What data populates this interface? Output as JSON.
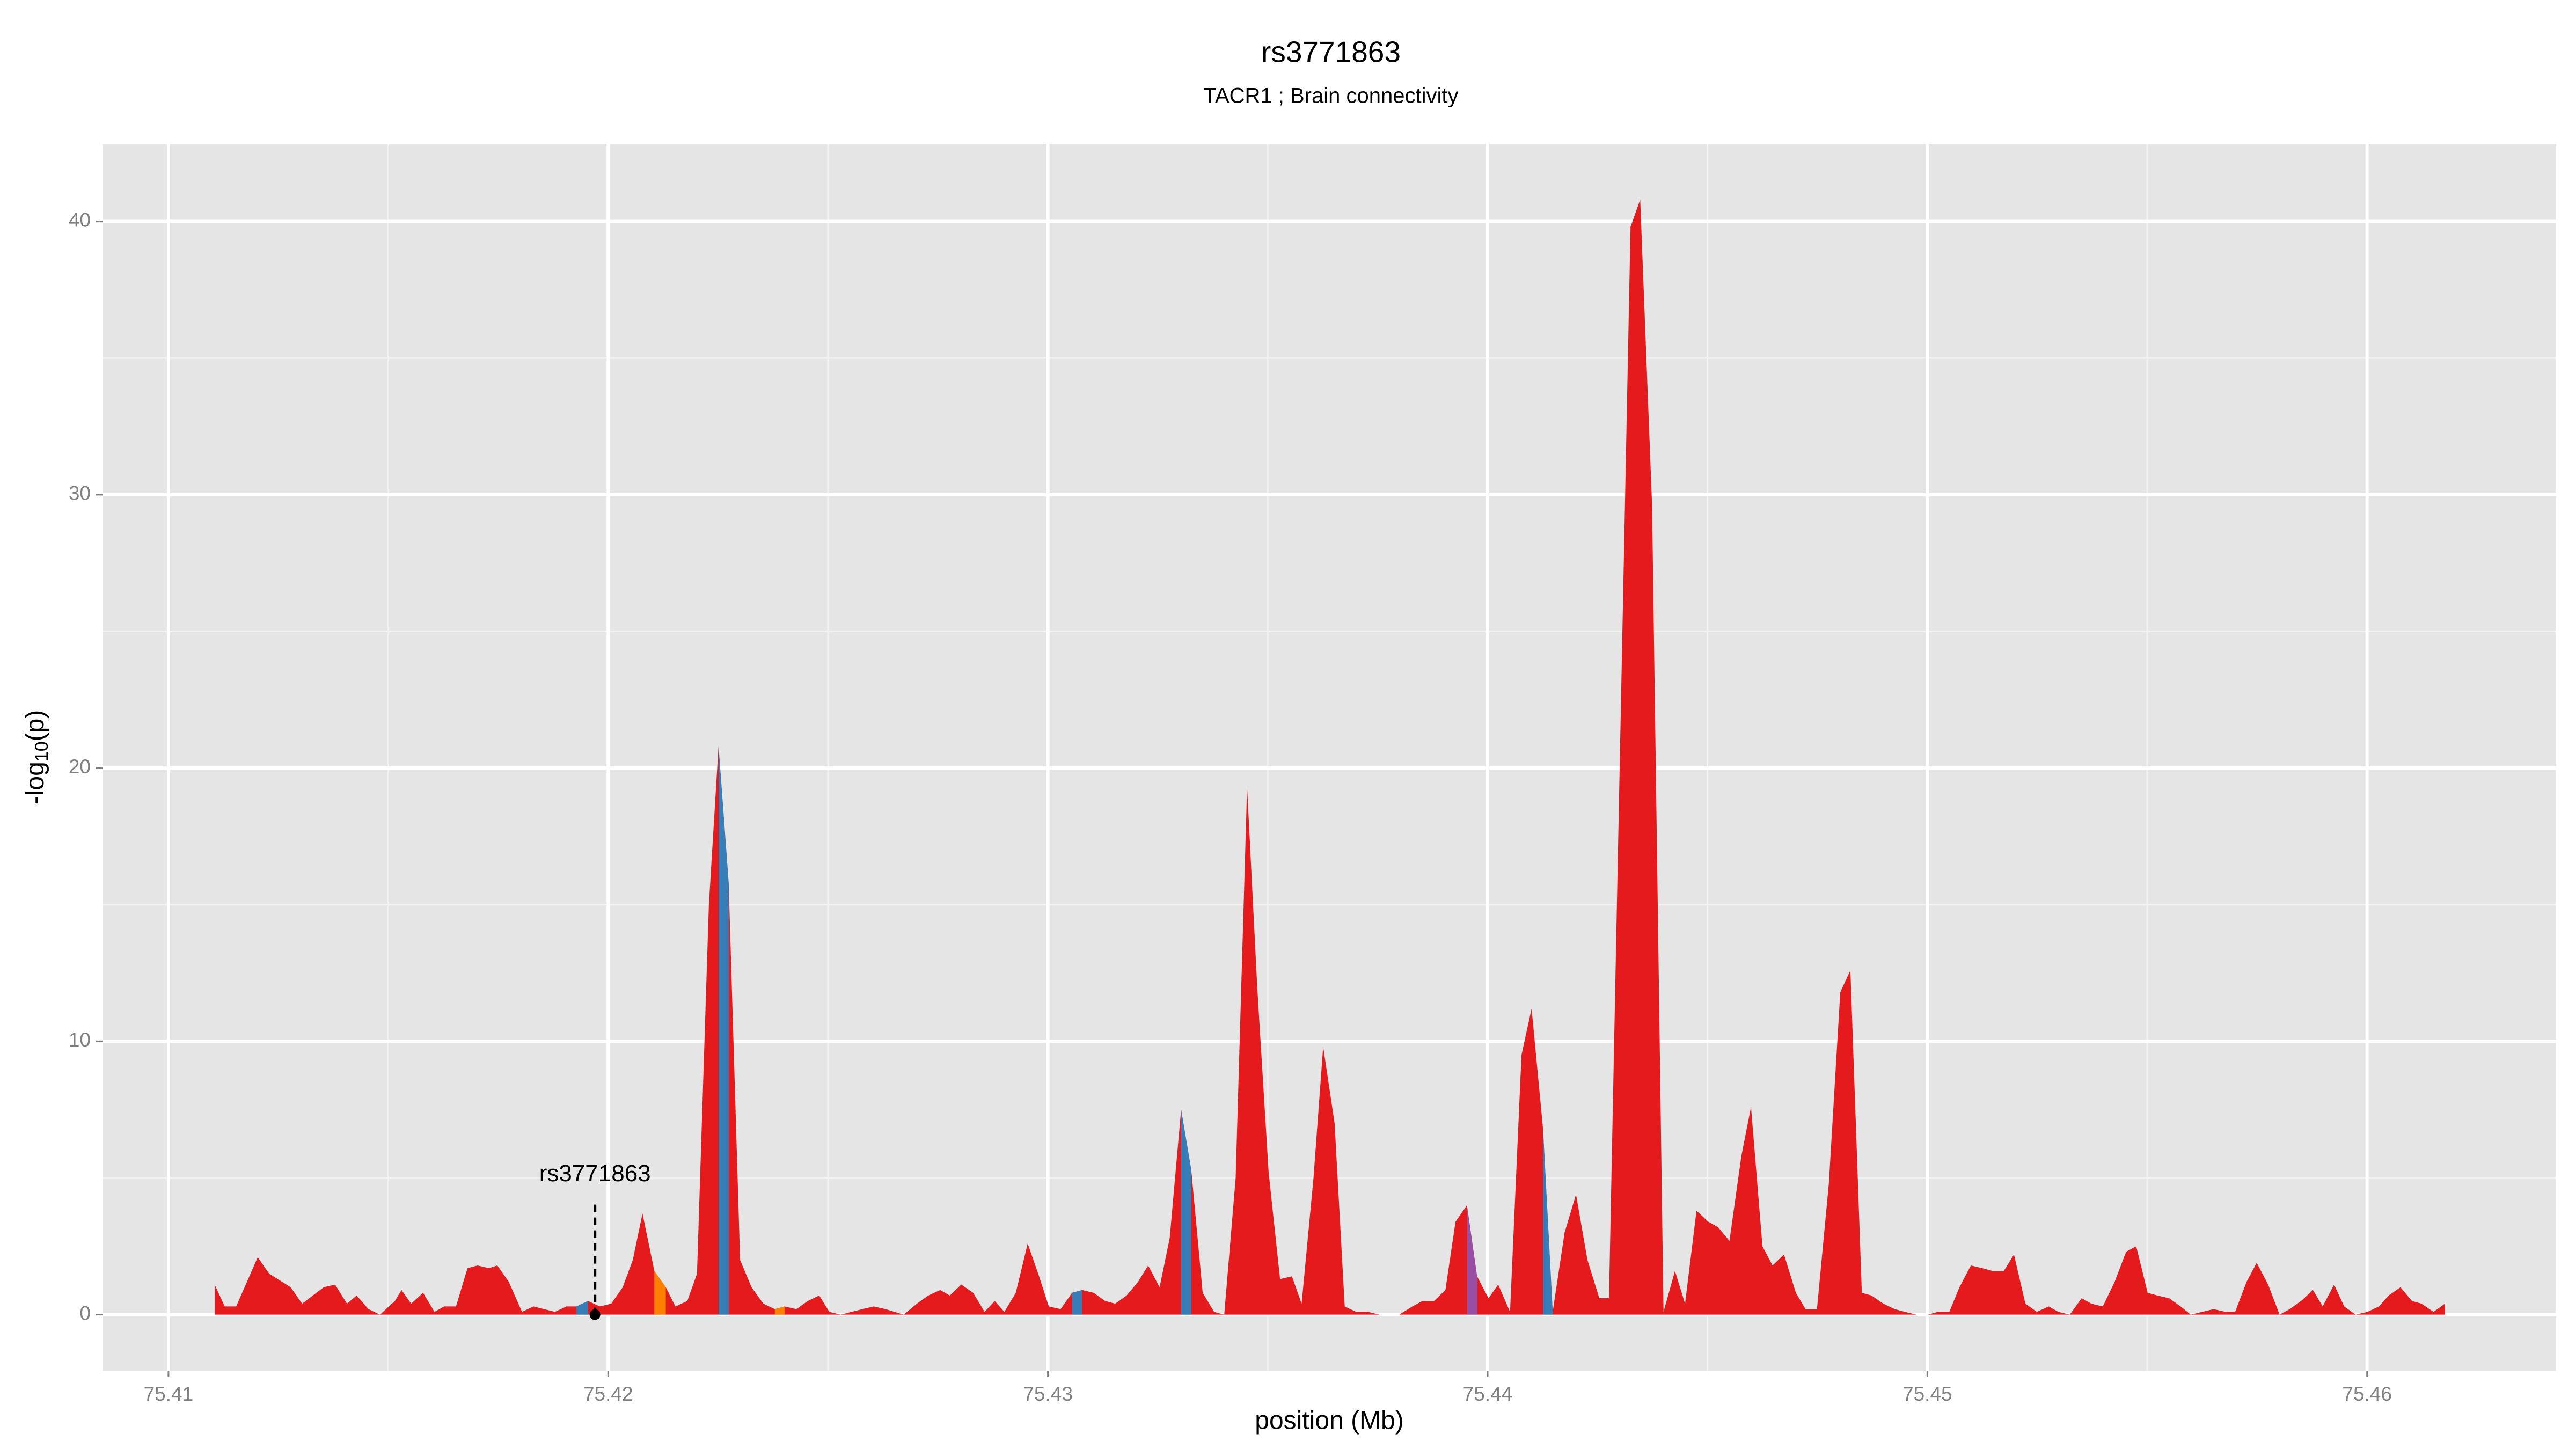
{
  "chart_data": {
    "type": "area",
    "title": "rs3771863",
    "subtitle": "TACR1 ; Brain connectivity",
    "x_label": "position (Mb)",
    "y_label": [
      "-log",
      "10",
      "(p)"
    ],
    "xlim": [
      75.4085,
      75.4643
    ],
    "ylim": [
      -2.05,
      42.84
    ],
    "xticks": [
      75.41,
      75.42,
      75.43,
      75.44,
      75.45,
      75.46
    ],
    "yticks": [
      0,
      10,
      20,
      30,
      40
    ],
    "grid": true,
    "annotation": {
      "label": "rs3771863",
      "x": 75.4197,
      "y": 0
    },
    "series": [
      {
        "color": "#e41a1c",
        "x": [
          75.41105,
          75.41128,
          75.41154,
          75.41203,
          75.41229,
          75.41278,
          75.41304,
          75.41353,
          75.41379,
          75.41406,
          75.41428,
          75.41455,
          75.41481,
          75.41515,
          75.4153,
          75.41552,
          75.41579,
          75.41605,
          75.41627,
          75.41654,
          75.4168,
          75.41703,
          75.41729,
          75.41748,
          75.41774,
          75.41804,
          75.4183,
          75.41879,
          75.41905,
          75.41928,
          75.41954,
          75.41981,
          75.42007,
          75.42033,
          75.42056,
          75.42078,
          75.42105,
          75.42131,
          75.42153,
          75.4218,
          75.42202,
          75.42229,
          75.42251,
          75.42274,
          75.423,
          75.42326,
          75.42353,
          75.42379,
          75.42401,
          75.42428,
          75.42454,
          75.4248,
          75.42503,
          75.42529,
          75.42578,
          75.42604,
          75.42631,
          75.42672,
          75.42702,
          75.42728,
          75.42755,
          75.42777,
          75.42803,
          75.4283,
          75.42856,
          75.42879,
          75.42901,
          75.42927,
          75.42954,
          75.4298,
          75.43002,
          75.43029,
          75.43055,
          75.43078,
          75.43104,
          75.4313,
          75.43153,
          75.43179,
          75.43205,
          75.43228,
          75.43254,
          75.43277,
          75.43303,
          75.43326,
          75.43352,
          75.43378,
          75.43401,
          75.43427,
          75.43453,
          75.43476,
          75.43502,
          75.43528,
          75.43555,
          75.43577,
          75.43604,
          75.43626,
          75.43652,
          75.43675,
          75.43701,
          75.43728,
          75.43754,
          75.43799,
          75.43829,
          75.43852,
          75.43878,
          75.43904,
          75.43927,
          75.43953,
          75.43976,
          75.44002,
          75.44024,
          75.44051,
          75.44077,
          75.441,
          75.44126,
          75.44148,
          75.44175,
          75.44201,
          75.44227,
          75.44254,
          75.44276,
          75.44325,
          75.44347,
          75.44374,
          75.444,
          75.44426,
          75.44449,
          75.44475,
          75.44502,
          75.44524,
          75.4455,
          75.44577,
          75.44599,
          75.44625,
          75.44648,
          75.44674,
          75.44701,
          75.44723,
          75.44749,
          75.44776,
          75.44802,
          75.44825,
          75.44851,
          75.44873,
          75.449,
          75.44926,
          75.44949,
          75.44975,
          75.45001,
          75.45024,
          75.4505,
          75.45073,
          75.45099,
          75.45125,
          75.45148,
          75.45174,
          75.45197,
          75.45223,
          75.45249,
          75.45276,
          75.45298,
          75.45324,
          75.45351,
          75.45373,
          75.45399,
          75.45426,
          75.45452,
          75.45475,
          75.45501,
          75.45523,
          75.4555,
          75.45576,
          75.45599,
          75.45625,
          75.45651,
          75.45678,
          75.457,
          75.45726,
          75.45749,
          75.45775,
          75.45801,
          75.45824,
          75.4585,
          75.45877,
          75.45899,
          75.45925,
          75.45948,
          75.45974,
          75.46001,
          75.46027,
          75.46049,
          75.46076,
          75.46102,
          75.46124,
          75.46151,
          75.46177
        ],
        "values": [
          1.1,
          0.3,
          0.3,
          2.1,
          1.5,
          1.0,
          0.4,
          1.0,
          1.1,
          0.4,
          0.7,
          0.2,
          0.0,
          0.5,
          0.9,
          0.4,
          0.8,
          0.1,
          0.3,
          0.3,
          1.7,
          1.8,
          1.7,
          1.8,
          1.2,
          0.1,
          0.3,
          0.1,
          0.3,
          0.3,
          0.5,
          0.3,
          0.4,
          1.0,
          2.0,
          3.7,
          1.6,
          1.0,
          0.3,
          0.5,
          1.5,
          15.0,
          20.8,
          15.8,
          2.0,
          1.0,
          0.4,
          0.2,
          0.3,
          0.2,
          0.5,
          0.7,
          0.1,
          0.0,
          0.2,
          0.3,
          0.2,
          0.0,
          0.4,
          0.7,
          0.9,
          0.7,
          1.1,
          0.8,
          0.1,
          0.5,
          0.1,
          0.8,
          2.6,
          1.4,
          0.3,
          0.2,
          0.8,
          0.9,
          0.8,
          0.5,
          0.4,
          0.7,
          1.2,
          1.8,
          1.0,
          2.8,
          7.5,
          5.3,
          0.8,
          0.1,
          0.0,
          5.0,
          19.3,
          12.0,
          5.2,
          1.3,
          1.4,
          0.4,
          5.0,
          9.8,
          7.0,
          0.3,
          0.1,
          0.1,
          0.0,
          0.0,
          0.3,
          0.5,
          0.5,
          0.9,
          3.4,
          4.0,
          1.4,
          0.6,
          1.1,
          0.1,
          9.5,
          11.2,
          6.8,
          0.1,
          3.0,
          4.4,
          2.0,
          0.6,
          0.6,
          39.8,
          40.8,
          29.6,
          0.1,
          1.6,
          0.4,
          3.8,
          3.4,
          3.2,
          2.7,
          5.8,
          7.6,
          2.5,
          1.8,
          2.2,
          0.8,
          0.2,
          0.2,
          4.8,
          11.8,
          12.6,
          0.8,
          0.7,
          0.4,
          0.2,
          0.1,
          0.0,
          0.0,
          0.1,
          0.1,
          1.0,
          1.8,
          1.7,
          1.6,
          1.6,
          2.2,
          0.4,
          0.1,
          0.3,
          0.1,
          0.0,
          0.6,
          0.4,
          0.3,
          1.2,
          2.3,
          2.5,
          0.8,
          0.7,
          0.6,
          0.3,
          0.0,
          0.1,
          0.2,
          0.1,
          0.1,
          1.2,
          1.9,
          1.1,
          0.0,
          0.2,
          0.5,
          0.9,
          0.3,
          1.1,
          0.3,
          0.0,
          0.1,
          0.3,
          0.7,
          1.0,
          0.5,
          0.4,
          0.1,
          0.4
        ]
      },
      {
        "color": "#377eb8",
        "x": [
          75.41928,
          75.41954,
          75.421,
          75.42251,
          75.42274,
          75.4265,
          75.43055,
          75.43078,
          75.4319,
          75.43303,
          75.43326,
          75.437,
          75.44126,
          75.44148
        ],
        "values": [
          0.3,
          0.5,
          null,
          20.8,
          15.8,
          null,
          0.8,
          0.9,
          null,
          7.5,
          5.3,
          null,
          6.8,
          0.1
        ]
      },
      {
        "color": "#ff7f00",
        "x": [
          75.42105,
          75.42131,
          75.4225,
          75.42379,
          75.42401
        ],
        "values": [
          1.6,
          1.0,
          null,
          0.2,
          0.3
        ]
      },
      {
        "color": "#984ea3",
        "x": [
          75.43953,
          75.43976
        ],
        "values": [
          4.0,
          1.4
        ]
      }
    ]
  }
}
